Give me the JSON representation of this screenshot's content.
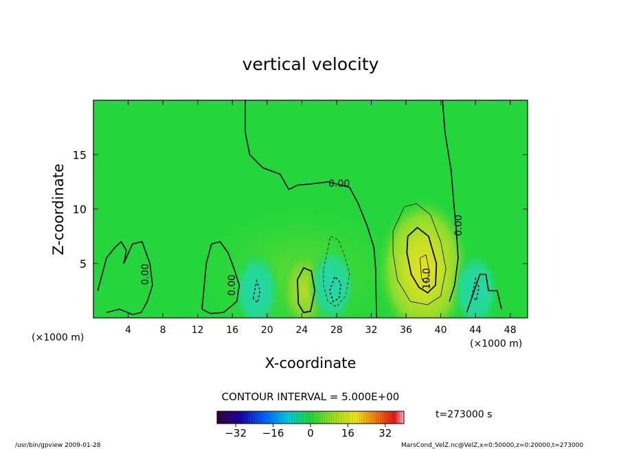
{
  "chart_data": {
    "type": "heatmap",
    "title": "vertical velocity",
    "xlabel": "X-coordinate",
    "ylabel": "Z-coordinate",
    "x_unit_left": "(×1000 m)",
    "x_unit_right": "(×1000 m)",
    "xlim": [
      0,
      50
    ],
    "ylim": [
      0,
      20
    ],
    "x_ticks": [
      4,
      8,
      12,
      16,
      20,
      24,
      28,
      32,
      36,
      40,
      44,
      48
    ],
    "y_ticks": [
      5,
      10,
      15
    ],
    "x_tick_labels": [
      "4",
      "8",
      "12",
      "16",
      "20",
      "24",
      "28",
      "32",
      "36",
      "40",
      "44",
      "48"
    ],
    "y_tick_labels": [
      "5",
      "10",
      "15"
    ],
    "contour_interval_text": "CONTOUR INTERVAL = 5.000E+00",
    "contour_labels": [
      {
        "text": "0.00",
        "x": 28.3,
        "y": 12.3,
        "rot": 0
      },
      {
        "text": "0.00",
        "x": 42.1,
        "y": 8.5,
        "rot": -90
      },
      {
        "text": "0.00",
        "x": 6.0,
        "y": 4.0,
        "rot": -90
      },
      {
        "text": "0.00",
        "x": 16.0,
        "y": 3.0,
        "rot": -90
      },
      {
        "text": "10.0",
        "x": 38.4,
        "y": 3.6,
        "rot": -90
      }
    ],
    "colorbar": {
      "min": -40,
      "max": 40,
      "ticks": [
        -32,
        -16,
        0,
        16,
        32
      ],
      "tick_labels": [
        "−32",
        "−16",
        "0",
        "16",
        "32"
      ]
    },
    "time_label": "t=273000  s",
    "footer_left": "/usr/bin/gpview   2009-01-28",
    "footer_right": "MarsCond_VelZ.nc@VelZ,x=0:50000,z=0:20000,t=273000",
    "features": [
      {
        "name": "updraft",
        "x": 38.0,
        "y": 4.5,
        "peak": 14
      },
      {
        "name": "updraft",
        "x": 24.3,
        "y": 2.5,
        "peak": 8
      },
      {
        "name": "downdraft",
        "x": 27.5,
        "y": 3.0,
        "peak": -7
      },
      {
        "name": "downdraft",
        "x": 18.8,
        "y": 2.5,
        "peak": -5
      },
      {
        "name": "downdraft",
        "x": 44.0,
        "y": 2.5,
        "peak": -5
      }
    ]
  },
  "colors": {
    "background_field": "#22d63b",
    "contour": "#000000"
  }
}
